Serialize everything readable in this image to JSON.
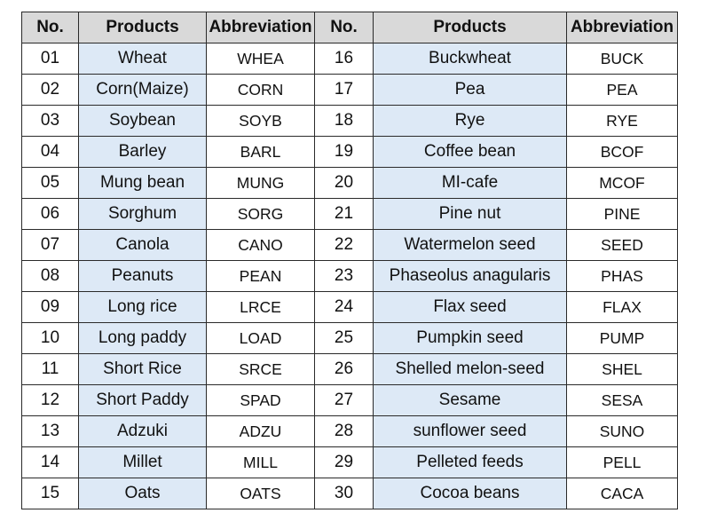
{
  "headers": [
    "No.",
    "Products",
    "Abbreviation",
    "No.",
    "Products",
    "Abbreviation"
  ],
  "rows": [
    [
      "01",
      "Wheat",
      "WHEA",
      "16",
      "Buckwheat",
      "BUCK"
    ],
    [
      "02",
      "Corn(Maize)",
      "CORN",
      "17",
      "Pea",
      "PEA"
    ],
    [
      "03",
      "Soybean",
      "SOYB",
      "18",
      "Rye",
      "RYE"
    ],
    [
      "04",
      "Barley",
      "BARL",
      "19",
      "Coffee bean",
      "BCOF"
    ],
    [
      "05",
      "Mung bean",
      "MUNG",
      "20",
      "MI-cafe",
      "MCOF"
    ],
    [
      "06",
      "Sorghum",
      "SORG",
      "21",
      "Pine nut",
      "PINE"
    ],
    [
      "07",
      "Canola",
      "CANO",
      "22",
      "Watermelon seed",
      "SEED"
    ],
    [
      "08",
      "Peanuts",
      "PEAN",
      "23",
      "Phaseolus anagularis",
      "PHAS"
    ],
    [
      "09",
      "Long rice",
      "LRCE",
      "24",
      "Flax seed",
      "FLAX"
    ],
    [
      "10",
      "Long paddy",
      "LOAD",
      "25",
      "Pumpkin seed",
      "PUMP"
    ],
    [
      "11",
      "Short Rice",
      "SRCE",
      "26",
      "Shelled melon-seed",
      "SHEL"
    ],
    [
      "12",
      "Short Paddy",
      "SPAD",
      "27",
      "Sesame",
      "SESA"
    ],
    [
      "13",
      "Adzuki",
      "ADZU",
      "28",
      "sunflower seed",
      "SUNO"
    ],
    [
      "14",
      "Millet",
      "MILL",
      "29",
      "Pelleted feeds",
      "PELL"
    ],
    [
      "15",
      "Oats",
      "OATS",
      "30",
      "Cocoa beans",
      "CACA"
    ]
  ]
}
